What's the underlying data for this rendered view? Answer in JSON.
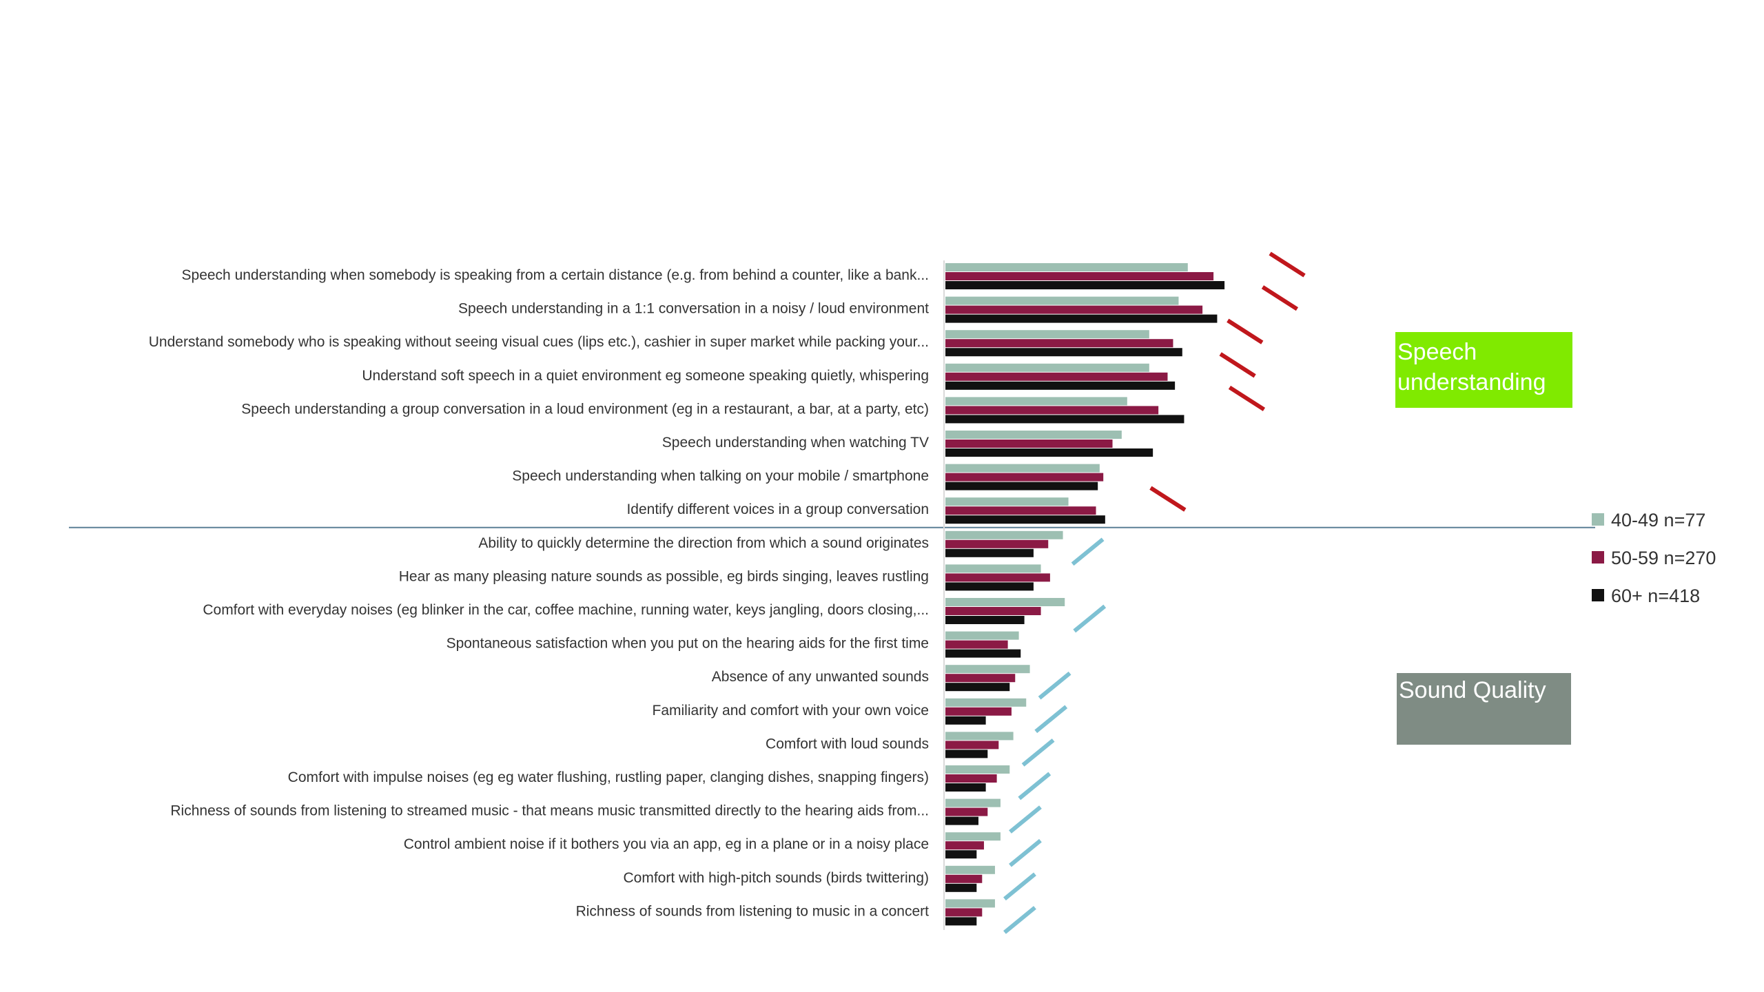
{
  "chart_data": {
    "type": "bar",
    "orientation": "horizontal",
    "categories": [
      "Speech understanding when somebody is speaking from a certain distance  (e.g. from behind a counter, like a bank...",
      "Speech understanding in a 1:1 conversation in a noisy / loud environment",
      "Understand somebody who is speaking without seeing visual cues (lips etc.), cashier in super market while packing your...",
      "Understand soft speech in a quiet environment eg someone speaking quietly, whispering",
      "Speech understanding a group conversation in a loud environment (eg in a restaurant, a bar, at a party, etc)",
      "Speech understanding when watching TV",
      "Speech understanding when talking on your mobile / smartphone",
      "Identify different voices in a group conversation",
      "Ability to quickly determine the direction from which a sound originates",
      "Hear as many pleasing nature sounds as possible, eg birds singing, leaves rustling",
      "Comfort with everyday noises  (eg blinker in the car, coffee machine, running water, keys jangling, doors closing,...",
      "Spontaneous satisfaction when you put on the hearing aids for the first time",
      "Absence of any unwanted sounds",
      "Familiarity and comfort with your own voice",
      "Comfort with loud sounds",
      "Comfort with impulse noises (eg eg water flushing, rustling paper, clanging dishes, snapping fingers)",
      "Richness of sounds from listening to  streamed music - that means music transmitted directly to the hearing aids from...",
      "Control ambient noise if it bothers you via an app, eg in a plane or in a noisy place",
      "Comfort with high-pitch sounds (birds twittering)",
      "Richness of sounds from listening to music in a concert"
    ],
    "series": [
      {
        "name": "40-49 n=77",
        "color": "#9dbfb2",
        "values": [
          66,
          63.5,
          55.5,
          55.5,
          49.5,
          48,
          42,
          33.5,
          32,
          26,
          32.5,
          20,
          23,
          22,
          18.5,
          17.5,
          15,
          15,
          13.5,
          13.5
        ]
      },
      {
        "name": "50-59 n=270",
        "color": "#8b1a45",
        "values": [
          73,
          70,
          62,
          60.5,
          58,
          45.5,
          43,
          41,
          28,
          28.5,
          26,
          17,
          19,
          18,
          14.5,
          14,
          11.5,
          10.5,
          10,
          10
        ]
      },
      {
        "name": "60+ n=418",
        "color": "#111111",
        "values": [
          76,
          74,
          64.5,
          62.5,
          65,
          56.5,
          41.5,
          43.5,
          24,
          24,
          21.5,
          20.5,
          17.5,
          11,
          11.5,
          11,
          9,
          8.5,
          8.5,
          8.5
        ]
      }
    ],
    "trend_marks": [
      {
        "index": 0,
        "direction": "down",
        "color": "#c0171c"
      },
      {
        "index": 1,
        "direction": "down",
        "color": "#c0171c"
      },
      {
        "index": 2,
        "direction": "down",
        "color": "#c0171c"
      },
      {
        "index": 3,
        "direction": "down",
        "color": "#c0171c"
      },
      {
        "index": 4,
        "direction": "down",
        "color": "#c0171c"
      },
      {
        "index": 7,
        "direction": "down",
        "color": "#c0171c"
      },
      {
        "index": 8,
        "direction": "up",
        "color": "#7ec1d3"
      },
      {
        "index": 10,
        "direction": "up",
        "color": "#7ec1d3"
      },
      {
        "index": 12,
        "direction": "up",
        "color": "#7ec1d3"
      },
      {
        "index": 13,
        "direction": "up",
        "color": "#7ec1d3"
      },
      {
        "index": 14,
        "direction": "up",
        "color": "#7ec1d3"
      },
      {
        "index": 15,
        "direction": "up",
        "color": "#7ec1d3"
      },
      {
        "index": 16,
        "direction": "up",
        "color": "#7ec1d3"
      },
      {
        "index": 17,
        "direction": "up",
        "color": "#7ec1d3"
      },
      {
        "index": 18,
        "direction": "up",
        "color": "#7ec1d3"
      },
      {
        "index": 19,
        "direction": "up",
        "color": "#7ec1d3"
      }
    ],
    "xlim": [
      0,
      100
    ],
    "legend_position": "right",
    "grid": false,
    "title": "",
    "xlabel": "",
    "ylabel": ""
  },
  "groups": [
    {
      "label": "Speech\nunderstanding",
      "color": "#80ea00"
    },
    {
      "label": "Sound Quality",
      "color": "#7f8c84"
    }
  ],
  "divider_color": "#5b7f96"
}
